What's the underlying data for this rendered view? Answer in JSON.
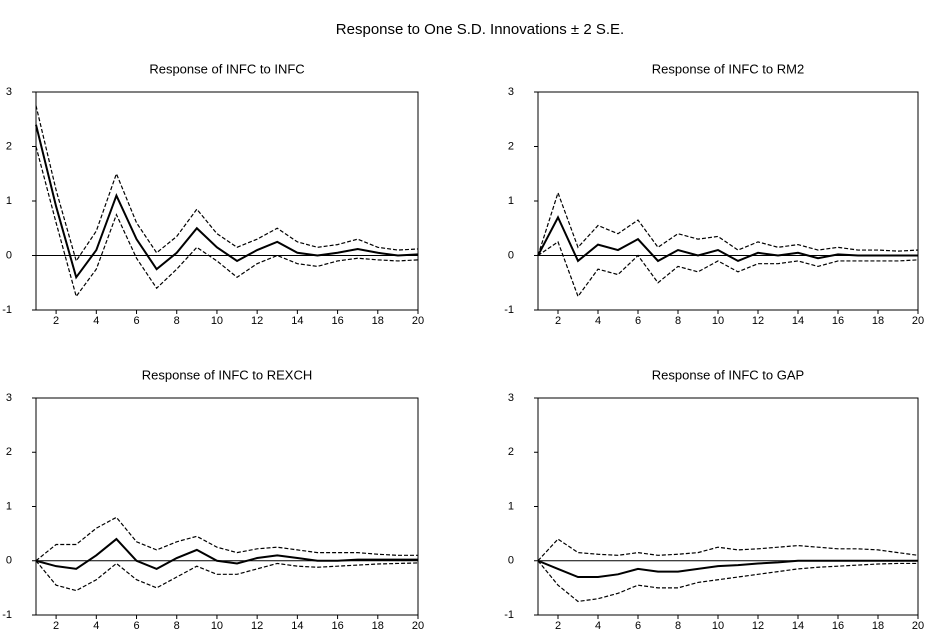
{
  "title": "Response to One S.D. Innovations ± 2 S.E.",
  "chart_data": [
    {
      "type": "line",
      "title": "Response of INFC to INFC",
      "x": [
        1,
        2,
        3,
        4,
        5,
        6,
        7,
        8,
        9,
        10,
        11,
        12,
        13,
        14,
        15,
        16,
        17,
        18,
        19,
        20
      ],
      "xlim": [
        1,
        20
      ],
      "xticks": [
        2,
        4,
        6,
        8,
        10,
        12,
        14,
        16,
        18,
        20
      ],
      "ylim": [
        -1,
        3
      ],
      "yticks": [
        -1,
        0,
        1,
        2,
        3
      ],
      "series": [
        {
          "color": "#000000",
          "dash": false,
          "values": [
            2.4,
            0.9,
            -0.4,
            0.1,
            1.1,
            0.3,
            -0.25,
            0.05,
            0.5,
            0.15,
            -0.1,
            0.1,
            0.25,
            0.05,
            0,
            0.05,
            0.12,
            0.05,
            0,
            0.02
          ]
        },
        {
          "color": "#000000",
          "dash": true,
          "values": [
            2.75,
            1.2,
            -0.1,
            0.45,
            1.5,
            0.6,
            0.05,
            0.35,
            0.85,
            0.4,
            0.15,
            0.3,
            0.5,
            0.25,
            0.15,
            0.2,
            0.3,
            0.15,
            0.1,
            0.12
          ]
        },
        {
          "color": "#000000",
          "dash": true,
          "values": [
            2.0,
            0.6,
            -0.75,
            -0.25,
            0.75,
            -0.05,
            -0.6,
            -0.25,
            0.15,
            -0.1,
            -0.4,
            -0.15,
            0,
            -0.15,
            -0.2,
            -0.1,
            -0.05,
            -0.08,
            -0.1,
            -0.08
          ]
        }
      ]
    },
    {
      "type": "line",
      "title": "Response of INFC to RM2",
      "x": [
        1,
        2,
        3,
        4,
        5,
        6,
        7,
        8,
        9,
        10,
        11,
        12,
        13,
        14,
        15,
        16,
        17,
        18,
        19,
        20
      ],
      "xlim": [
        1,
        20
      ],
      "xticks": [
        2,
        4,
        6,
        8,
        10,
        12,
        14,
        16,
        18,
        20
      ],
      "ylim": [
        -1,
        3
      ],
      "yticks": [
        -1,
        0,
        1,
        2,
        3
      ],
      "series": [
        {
          "color": "#000000",
          "dash": false,
          "values": [
            0,
            0.7,
            -0.1,
            0.2,
            0.1,
            0.3,
            -0.1,
            0.1,
            0,
            0.1,
            -0.1,
            0.05,
            0,
            0.05,
            -0.05,
            0.02,
            0,
            0,
            0,
            0
          ]
        },
        {
          "color": "#000000",
          "dash": true,
          "values": [
            0,
            1.15,
            0.15,
            0.55,
            0.4,
            0.65,
            0.15,
            0.4,
            0.3,
            0.35,
            0.1,
            0.25,
            0.15,
            0.2,
            0.1,
            0.15,
            0.1,
            0.1,
            0.08,
            0.1
          ]
        },
        {
          "color": "#000000",
          "dash": true,
          "values": [
            0,
            0.25,
            -0.75,
            -0.25,
            -0.35,
            0,
            -0.5,
            -0.2,
            -0.3,
            -0.1,
            -0.3,
            -0.15,
            -0.15,
            -0.1,
            -0.2,
            -0.1,
            -0.1,
            -0.1,
            -0.1,
            -0.08
          ]
        }
      ]
    },
    {
      "type": "line",
      "title": "Response of INFC to REXCH",
      "x": [
        1,
        2,
        3,
        4,
        5,
        6,
        7,
        8,
        9,
        10,
        11,
        12,
        13,
        14,
        15,
        16,
        17,
        18,
        19,
        20
      ],
      "xlim": [
        1,
        20
      ],
      "xticks": [
        2,
        4,
        6,
        8,
        10,
        12,
        14,
        16,
        18,
        20
      ],
      "ylim": [
        -1,
        3
      ],
      "yticks": [
        -1,
        0,
        1,
        2,
        3
      ],
      "series": [
        {
          "color": "#000000",
          "dash": false,
          "values": [
            0,
            -0.1,
            -0.15,
            0.1,
            0.4,
            0,
            -0.15,
            0.05,
            0.2,
            0,
            -0.05,
            0.05,
            0.1,
            0.05,
            0,
            0,
            0.02,
            0.02,
            0.02,
            0.02
          ]
        },
        {
          "color": "#000000",
          "dash": true,
          "values": [
            0,
            0.3,
            0.3,
            0.6,
            0.8,
            0.35,
            0.2,
            0.35,
            0.45,
            0.25,
            0.15,
            0.22,
            0.25,
            0.2,
            0.15,
            0.15,
            0.15,
            0.12,
            0.1,
            0.1
          ]
        },
        {
          "color": "#000000",
          "dash": true,
          "values": [
            0,
            -0.45,
            -0.55,
            -0.35,
            -0.05,
            -0.35,
            -0.5,
            -0.3,
            -0.1,
            -0.25,
            -0.25,
            -0.15,
            -0.05,
            -0.1,
            -0.12,
            -0.1,
            -0.08,
            -0.06,
            -0.05,
            -0.04
          ]
        }
      ]
    },
    {
      "type": "line",
      "title": "Response of INFC to GAP",
      "x": [
        1,
        2,
        3,
        4,
        5,
        6,
        7,
        8,
        9,
        10,
        11,
        12,
        13,
        14,
        15,
        16,
        17,
        18,
        19,
        20
      ],
      "xlim": [
        1,
        20
      ],
      "xticks": [
        2,
        4,
        6,
        8,
        10,
        12,
        14,
        16,
        18,
        20
      ],
      "ylim": [
        -1,
        3
      ],
      "yticks": [
        -1,
        0,
        1,
        2,
        3
      ],
      "series": [
        {
          "color": "#000000",
          "dash": false,
          "values": [
            0,
            -0.15,
            -0.3,
            -0.3,
            -0.25,
            -0.15,
            -0.2,
            -0.2,
            -0.15,
            -0.1,
            -0.08,
            -0.05,
            -0.03,
            0,
            0,
            0,
            0,
            0,
            0,
            0
          ]
        },
        {
          "color": "#000000",
          "dash": true,
          "values": [
            0,
            0.4,
            0.15,
            0.12,
            0.1,
            0.15,
            0.1,
            0.12,
            0.15,
            0.25,
            0.2,
            0.22,
            0.25,
            0.28,
            0.25,
            0.22,
            0.22,
            0.2,
            0.15,
            0.1
          ]
        },
        {
          "color": "#000000",
          "dash": true,
          "values": [
            0,
            -0.45,
            -0.75,
            -0.7,
            -0.6,
            -0.45,
            -0.5,
            -0.5,
            -0.4,
            -0.35,
            -0.3,
            -0.25,
            -0.2,
            -0.15,
            -0.12,
            -0.1,
            -0.08,
            -0.06,
            -0.05,
            -0.05
          ]
        }
      ]
    }
  ]
}
